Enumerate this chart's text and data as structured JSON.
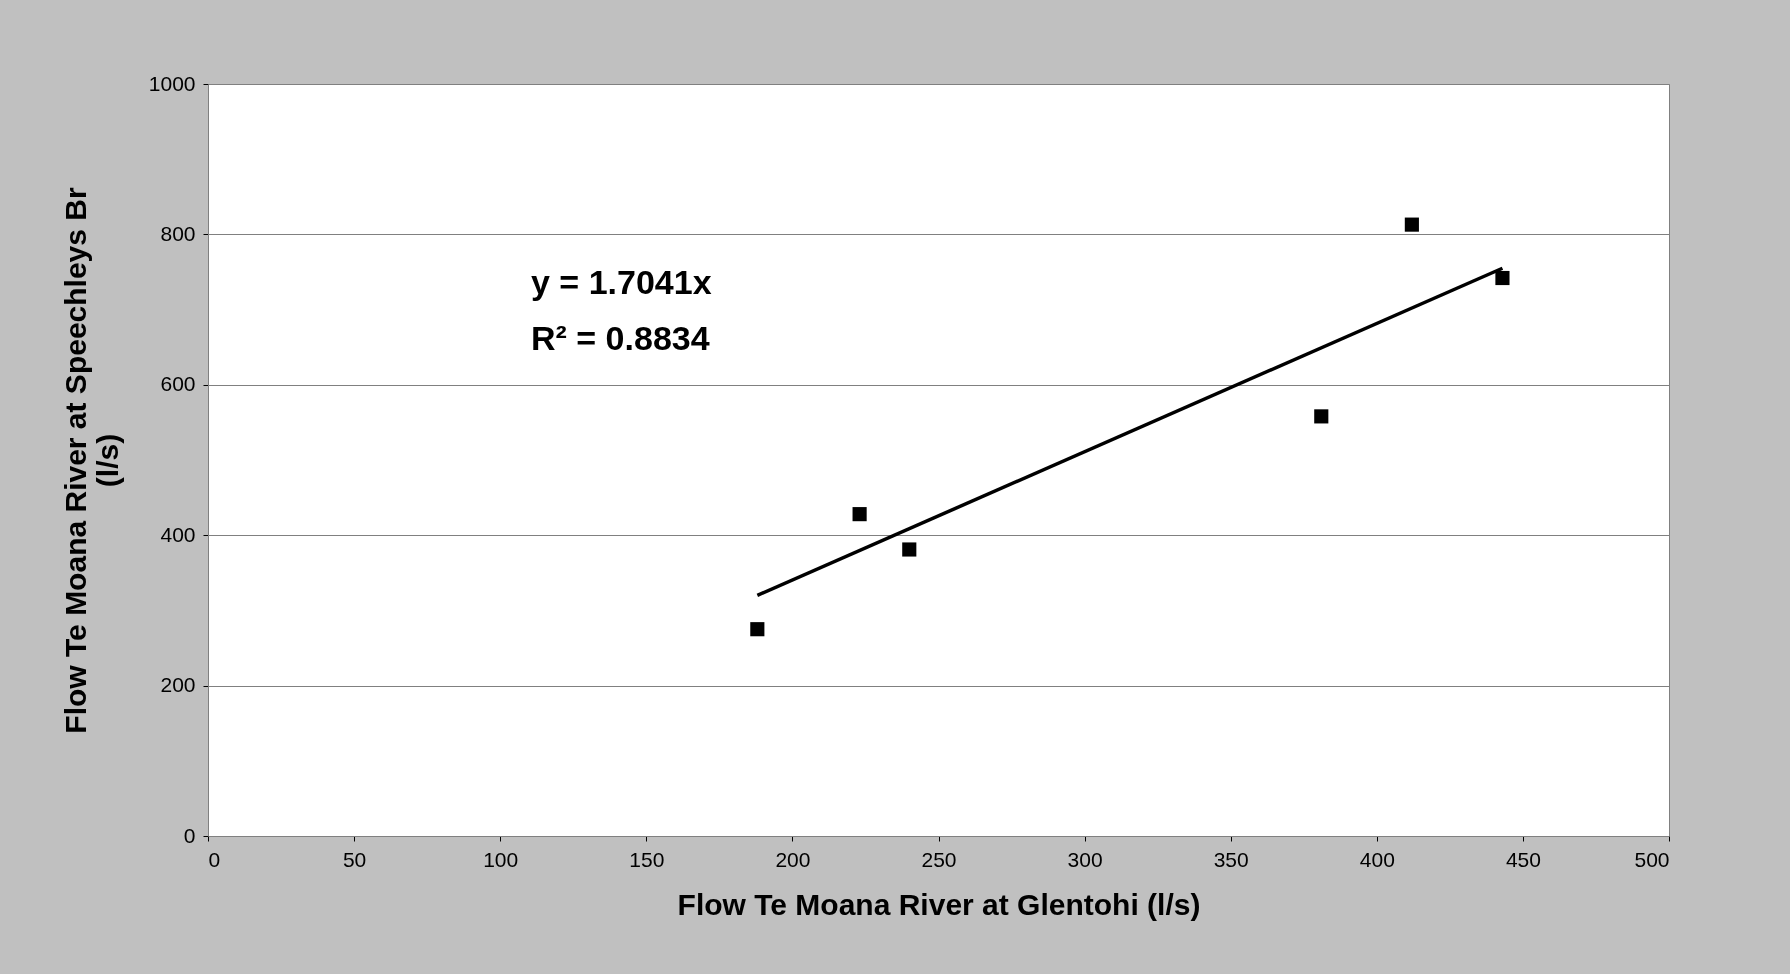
{
  "chart_data": {
    "type": "scatter",
    "xlabel": "Flow Te Moana River at Glentohi (l/s)",
    "ylabel": "Flow Te Moana River at Speechleys Br (l/s)",
    "x": [
      188,
      223,
      240,
      381,
      412,
      443
    ],
    "series": [
      {
        "type": "scatter",
        "color": "#000000",
        "marker": "square",
        "values": [
          275,
          428,
          381,
          558,
          813,
          742
        ]
      },
      {
        "type": "line",
        "color": "#000000",
        "x": [
          188,
          443
        ],
        "values": [
          320,
          755
        ],
        "line_style": "solid"
      }
    ],
    "annotations": [
      "y = 1.7041x",
      "R² = 0.8834"
    ],
    "xlim": [
      0,
      500
    ],
    "xticks": [
      0,
      50,
      100,
      150,
      200,
      250,
      300,
      350,
      400,
      450,
      500
    ],
    "ylim": [
      0,
      1000
    ],
    "yticks": [
      0,
      200,
      400,
      600,
      800,
      1000
    ],
    "grid": "y",
    "legend": false
  }
}
